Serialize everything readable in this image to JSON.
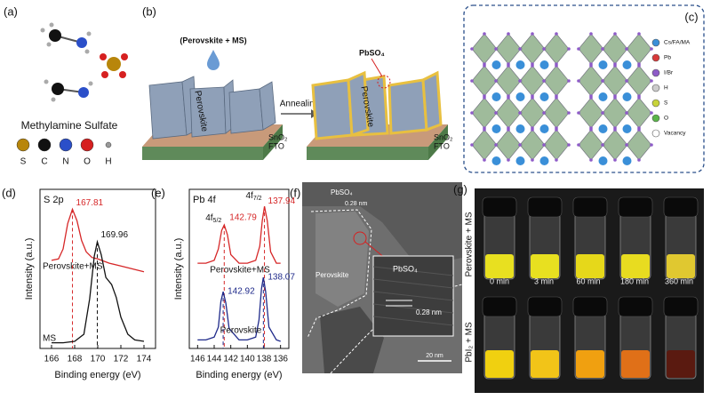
{
  "panels": {
    "a": {
      "label": "(a)",
      "title": "Methylamine Sulfate",
      "atoms": [
        {
          "symbol": "S",
          "color": "#b8860b"
        },
        {
          "symbol": "C",
          "color": "#111111"
        },
        {
          "symbol": "N",
          "color": "#2b4fc9"
        },
        {
          "symbol": "O",
          "color": "#d62020"
        },
        {
          "symbol": "H",
          "color": "#9a9a9a"
        }
      ]
    },
    "b": {
      "label": "(b)",
      "precursor": "(Perovskite + MS)",
      "step": "Annealing",
      "product": "PbSO₄",
      "film": "Perovskite",
      "layers": [
        "SnO₂",
        "FTO"
      ]
    },
    "c": {
      "label": "(c)",
      "legend": [
        {
          "name": "Cs/FA/MA",
          "color": "#3a8fd8"
        },
        {
          "name": "Pb",
          "color": "#d83a3a"
        },
        {
          "name": "I/Br",
          "color": "#8e5bc8"
        },
        {
          "name": "H",
          "color": "#cccccc"
        },
        {
          "name": "S",
          "color": "#c8d43a"
        },
        {
          "name": "O",
          "color": "#5ab44a"
        },
        {
          "name": "Vacancy",
          "color": "#ffffff"
        }
      ]
    },
    "f": {
      "label": "(f)",
      "shell": "PbSO₄",
      "shell_spacing": "0.28 nm",
      "core": "Perovskite",
      "inset": "PbSO₄",
      "inset_spacing": "0.28 nm",
      "scale_bar": "20 nm"
    },
    "g": {
      "label": "(g)",
      "rows": [
        "Perovskite + MS",
        "PbI₂ + MS"
      ],
      "times": [
        "0 min",
        "3 min",
        "60 min",
        "180 min",
        "360 min"
      ]
    }
  },
  "chart_data": [
    {
      "panel": "(d)",
      "type": "line",
      "title": "S 2p",
      "xlabel": "Binding energy (eV)",
      "ylabel": "Intensity (a.u.)",
      "xlim": [
        165,
        175
      ],
      "xticks": [
        166,
        168,
        170,
        172,
        174
      ],
      "ylim": [
        0,
        1.12
      ],
      "series": [
        {
          "name": "Perovskite+MS",
          "color": "#d62728",
          "peaks": [
            167.81
          ],
          "x": [
            166,
            166.6,
            167.0,
            167.4,
            167.81,
            168.2,
            168.6,
            169,
            169.5,
            170,
            171,
            172,
            173,
            174
          ],
          "values": [
            0.62,
            0.63,
            0.7,
            0.88,
            0.98,
            0.9,
            0.76,
            0.68,
            0.64,
            0.63,
            0.6,
            0.58,
            0.56,
            0.54
          ]
        },
        {
          "name": "MS",
          "color": "#111111",
          "peaks": [
            169.96
          ],
          "x": [
            166,
            167,
            168,
            168.8,
            169.3,
            169.7,
            169.96,
            170.3,
            170.7,
            171.2,
            171.6,
            172,
            172.6,
            173.2,
            174
          ],
          "values": [
            0.04,
            0.04,
            0.05,
            0.1,
            0.35,
            0.65,
            0.75,
            0.66,
            0.5,
            0.45,
            0.36,
            0.22,
            0.1,
            0.06,
            0.05
          ]
        }
      ]
    },
    {
      "panel": "(e)",
      "type": "line",
      "title": "Pb 4f",
      "xlabel": "Binding energy (eV)",
      "ylabel": "Intensity (a.u.)",
      "xlim": [
        147,
        135
      ],
      "xticks": [
        146,
        144,
        142,
        140,
        138,
        136
      ],
      "ylim": [
        0,
        1.12
      ],
      "peak_labels": [
        {
          "text": "4f",
          "sub": "5/2"
        },
        {
          "text": "4f",
          "sub": "7/2"
        }
      ],
      "series": [
        {
          "name": "Perovskite+MS",
          "color": "#d62728",
          "peaks": [
            142.79,
            137.94
          ],
          "x": [
            146,
            145,
            144,
            143.5,
            143.1,
            142.79,
            142.4,
            142,
            141,
            140,
            139,
            138.5,
            138.2,
            137.94,
            137.6,
            137.2,
            136.5,
            136
          ],
          "values": [
            0.6,
            0.6,
            0.62,
            0.7,
            0.83,
            0.87,
            0.8,
            0.66,
            0.6,
            0.6,
            0.62,
            0.72,
            0.9,
            1.0,
            0.9,
            0.68,
            0.6,
            0.6
          ]
        },
        {
          "name": "Perovskite",
          "color": "#1f2a8a",
          "peaks": [
            142.92,
            138.07
          ],
          "x": [
            146,
            145,
            144,
            143.5,
            143.2,
            142.92,
            142.6,
            142.2,
            141,
            140,
            139,
            138.6,
            138.3,
            138.07,
            137.8,
            137.4,
            136.5,
            136
          ],
          "values": [
            0.06,
            0.06,
            0.08,
            0.15,
            0.33,
            0.4,
            0.32,
            0.14,
            0.06,
            0.06,
            0.08,
            0.2,
            0.42,
            0.5,
            0.4,
            0.15,
            0.06,
            0.05
          ]
        }
      ]
    }
  ]
}
